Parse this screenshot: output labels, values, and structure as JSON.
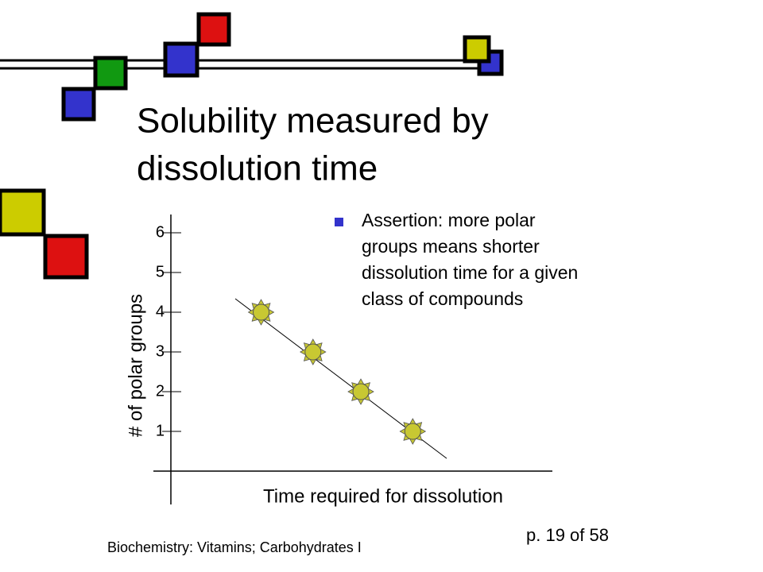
{
  "title_lines": [
    "Solubility measured by",
    "dissolution time"
  ],
  "bullets": [
    {
      "lines": [
        "Assertion: more polar",
        "groups means shorter",
        "dissolution time for a given",
        "class of compounds"
      ]
    }
  ],
  "footer": {
    "left": "Biochemistry: Vitamins; Carbohydrates I",
    "right": "p. 19 of 58"
  },
  "chart_data": {
    "type": "scatter",
    "x_label": "Time required for dissolution",
    "y_label": "# of polar groups",
    "x": [
      2.7,
      4.0,
      5.2,
      6.5
    ],
    "values": [
      4,
      3,
      2,
      1
    ],
    "color": "#c8c832",
    "xlim": [
      0,
      10
    ],
    "ylim": [
      0,
      6.5
    ],
    "yticks": [
      1,
      2,
      3,
      4,
      5,
      6
    ]
  }
}
